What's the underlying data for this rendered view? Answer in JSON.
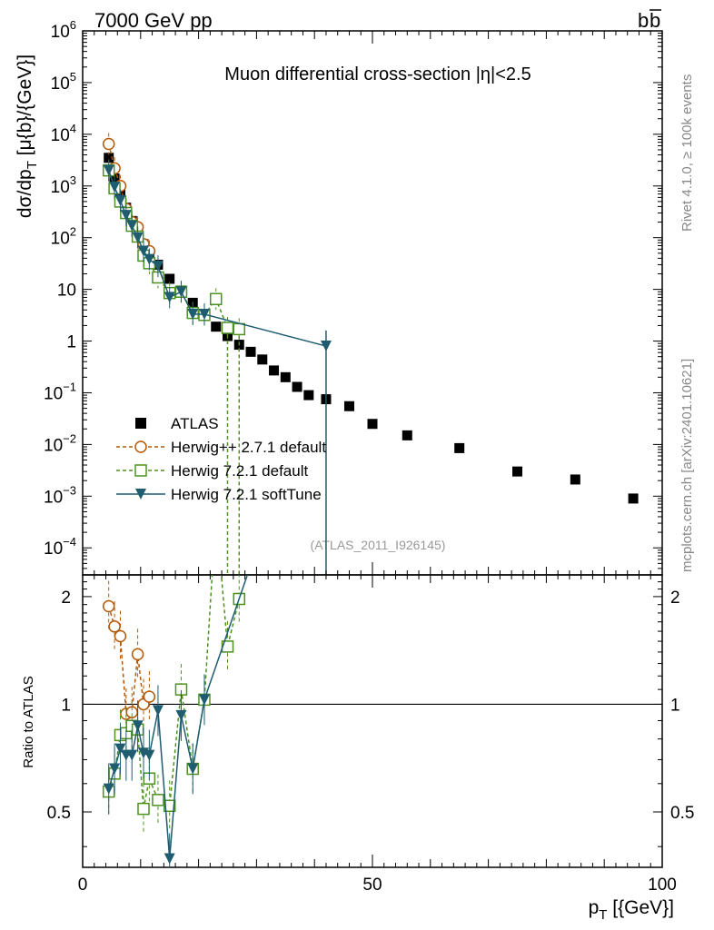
{
  "header": {
    "left": "7000 GeV pp",
    "right": "b",
    "right_bar": "b"
  },
  "side": {
    "rivet": "Rivet 4.1.0, ≥ 100k events",
    "mcplots": "mcplots.cern.ch [arXiv:2401.10621]"
  },
  "colors": {
    "atlas": "#000000",
    "herwigpp": "#b35806",
    "herwig721": "#4d9221",
    "softtune": "#1f5c70"
  },
  "chart_data": {
    "type": "scatter",
    "title": "Muon differential cross-section |η|<2.5",
    "analysis_id": "(ATLAS_2011_I926145)",
    "xlabel": "p_T [{GeV}]",
    "ylabel": "dσ/dp_T [μ{b}/{GeV}]",
    "ratio_ylabel": "Ratio to ATLAS",
    "xlim": [
      0,
      100
    ],
    "ylim": [
      3e-05,
      1000000.0
    ],
    "ratio_ylim": [
      0.35,
      2.3
    ],
    "xticks": [
      {
        "v": 0,
        "label": "0"
      },
      {
        "v": 50,
        "label": "50"
      },
      {
        "v": 100,
        "label": "100"
      }
    ],
    "yticks": [
      {
        "v": 1000000.0,
        "m": "10",
        "e": "6"
      },
      {
        "v": 100000.0,
        "m": "10",
        "e": "5"
      },
      {
        "v": 10000.0,
        "m": "10",
        "e": "4"
      },
      {
        "v": 1000.0,
        "m": "10",
        "e": "3"
      },
      {
        "v": 100.0,
        "m": "10",
        "e": "2"
      },
      {
        "v": 10,
        "m": "10",
        "e": ""
      },
      {
        "v": 1,
        "m": "1",
        "e": ""
      },
      {
        "v": 0.1,
        "m": "10",
        "e": "−1"
      },
      {
        "v": 0.01,
        "m": "10",
        "e": "−2"
      },
      {
        "v": 0.001,
        "m": "10",
        "e": "−3"
      },
      {
        "v": 0.0001,
        "m": "10",
        "e": "−4"
      }
    ],
    "ratio_yticks": [
      {
        "v": 0.5,
        "label": "0.5"
      },
      {
        "v": 1,
        "label": "1"
      },
      {
        "v": 2,
        "label": "2"
      }
    ],
    "legend": [
      "ATLAS",
      "Herwig++ 2.7.1 default",
      "Herwig 7.2.1 default",
      "Herwig 7.2.1 softTune"
    ],
    "series": [
      {
        "name": "ATLAS",
        "style": "square",
        "color": "#000000",
        "x": [
          4.5,
          5.5,
          6.5,
          7.5,
          8.5,
          9.5,
          10.5,
          11.5,
          13,
          15,
          17,
          19,
          21,
          23,
          25,
          27,
          29,
          31,
          33,
          35,
          37,
          39,
          42,
          46,
          50,
          56,
          65,
          75,
          85,
          95
        ],
        "y": [
          3500,
          1400,
          700,
          380,
          210,
          120,
          75,
          50,
          30,
          16,
          9.5,
          5.5,
          3.2,
          1.9,
          1.25,
          0.85,
          0.62,
          0.44,
          0.27,
          0.2,
          0.13,
          0.09,
          0.075,
          0.055,
          0.025,
          0.015,
          0.0085,
          0.003,
          0.0021,
          0.0009
        ]
      },
      {
        "name": "Herwig++ 2.7.1 default",
        "style": "circle",
        "color": "#b35806",
        "x": [
          4.5,
          5.5,
          6.5,
          7.5,
          8.5,
          9.5,
          10.5,
          11.5
        ],
        "y": [
          6500,
          2200,
          1000,
          360,
          200,
          160,
          75,
          55
        ],
        "ratio": [
          1.88,
          1.65,
          1.55,
          0.94,
          0.95,
          1.38,
          1.0,
          1.05
        ]
      },
      {
        "name": "Herwig 7.2.1 default",
        "style": "open-square",
        "color": "#4d9221",
        "x": [
          4.5,
          5.5,
          6.5,
          7.5,
          8.5,
          9.5,
          10.5,
          11.5,
          13,
          15,
          17,
          19,
          21,
          23,
          25,
          27
        ],
        "y": [
          2000,
          900,
          500,
          300,
          170,
          105,
          45,
          32,
          17,
          8.5,
          9,
          3.5,
          3.2,
          6.5,
          1.8,
          1.7
        ],
        "ratio": [
          0.57,
          0.64,
          0.82,
          0.83,
          0.87,
          0.85,
          0.51,
          0.62,
          0.54,
          0.52,
          1.1,
          0.66,
          1.03,
          3.4,
          1.45,
          1.97
        ]
      },
      {
        "name": "Herwig 7.2.1 softTune",
        "style": "triangle",
        "color": "#1f5c70",
        "x": [
          4.5,
          5.5,
          6.5,
          7.5,
          8.5,
          9.5,
          10.5,
          11.5,
          13,
          15,
          17,
          19,
          21,
          42
        ],
        "y": [
          2000,
          950,
          520,
          270,
          170,
          100,
          55,
          38,
          28,
          7,
          9,
          3.3,
          3.3,
          0.8
        ],
        "ratio": [
          0.58,
          0.66,
          0.75,
          0.72,
          0.72,
          0.87,
          0.73,
          0.72,
          0.96,
          0.37,
          0.93,
          0.66,
          1.03,
          10
        ]
      }
    ]
  }
}
